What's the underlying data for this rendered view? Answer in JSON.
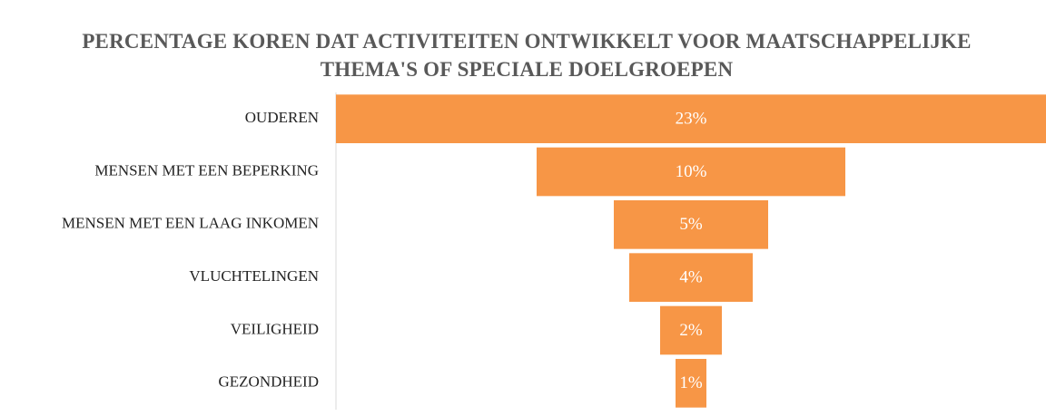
{
  "chart_data": {
    "type": "funnel",
    "title": "PERCENTAGE KOREN DAT ACTIVITEITEN ONTWIKKELT VOOR MAATSCHAPPELIJKE THEMA'S OF SPECIALE DOELGROEPEN",
    "categories": [
      "OUDEREN",
      "MENSEN MET EEN BEPERKING",
      "MENSEN MET EEN LAAG INKOMEN",
      "VLUCHTELINGEN",
      "VEILIGHEID",
      "GEZONDHEID"
    ],
    "values": [
      23,
      10,
      5,
      4,
      2,
      1
    ],
    "value_labels": [
      "23%",
      "10%",
      "5%",
      "4%",
      "2%",
      "1%"
    ],
    "color": "#f79646"
  }
}
